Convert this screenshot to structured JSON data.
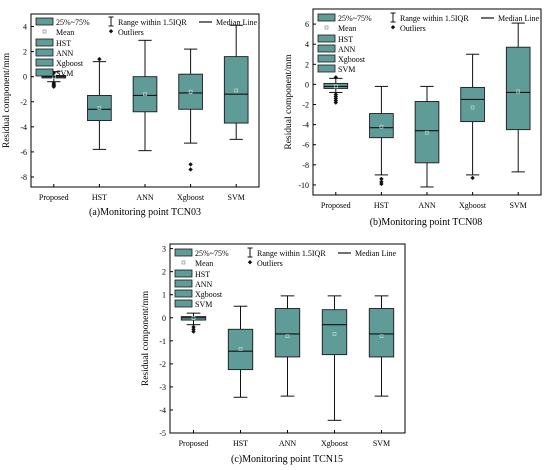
{
  "colors": {
    "box_fill": "#5f9c98",
    "box_edge": "#1a1a1a",
    "line": "#111111",
    "axis": "#000000"
  },
  "legend": {
    "box_label": "25%~75%",
    "range_label": "Range within 1.5IQR",
    "median_label": "Median Line",
    "mean_label": "Mean",
    "outliers_label": "Outliers"
  },
  "chart_data": [
    {
      "type": "box",
      "title": "(a)Monitoring point TCN03",
      "ylabel": "Residual component/mm",
      "xlabel": "",
      "ylim": [
        -8.8,
        5
      ],
      "yticks": [
        -8,
        -6,
        -4,
        -2,
        0,
        2,
        4
      ],
      "categories": [
        "Proposed",
        "HST",
        "ANN",
        "Xgboost",
        "SVM"
      ],
      "legend_series": [
        "HST",
        "ANN",
        "Xgboost",
        "SVM"
      ],
      "boxes": [
        {
          "min": -0.4,
          "q1": -0.1,
          "median": 0.0,
          "q3": 0.1,
          "max": 0.4,
          "mean": 0.0,
          "outliers": [
            -0.5,
            -0.6,
            -0.7,
            -0.8,
            0.3
          ]
        },
        {
          "min": -5.8,
          "q1": -3.5,
          "median": -2.6,
          "q3": -1.5,
          "max": 1.2,
          "mean": -2.5,
          "outliers": [
            1.4
          ]
        },
        {
          "min": -5.9,
          "q1": -2.8,
          "median": -1.5,
          "q3": 0.0,
          "max": 2.9,
          "mean": -1.4,
          "outliers": []
        },
        {
          "min": -5.3,
          "q1": -2.6,
          "median": -1.3,
          "q3": 0.2,
          "max": 2.2,
          "mean": -1.2,
          "outliers": [
            -7.0,
            -7.4
          ]
        },
        {
          "min": -5.0,
          "q1": -3.7,
          "median": -1.4,
          "q3": 1.6,
          "max": 4.1,
          "mean": -1.1,
          "outliers": []
        }
      ]
    },
    {
      "type": "box",
      "title": "(b)Monitoring point TCN08",
      "ylabel": "Residual component/mm",
      "xlabel": "",
      "ylim": [
        -11,
        7.5
      ],
      "yticks": [
        -10,
        -8,
        -6,
        -4,
        -2,
        0,
        2,
        4,
        6
      ],
      "categories": [
        "Proposed",
        "HST",
        "ANN",
        "Xgboost",
        "SVM"
      ],
      "legend_series": [
        "HST",
        "ANN",
        "Xgboost",
        "SVM"
      ],
      "boxes": [
        {
          "min": -0.8,
          "q1": -0.4,
          "median": -0.2,
          "q3": 0.1,
          "max": 0.6,
          "mean": -0.2,
          "outliers": [
            -1.0,
            -1.2,
            -1.4,
            -1.6,
            -1.8,
            0.7
          ]
        },
        {
          "min": -9.0,
          "q1": -5.3,
          "median": -4.3,
          "q3": -2.9,
          "max": -0.2,
          "mean": -4.2,
          "outliers": [
            -9.4,
            -9.7,
            -9.9
          ]
        },
        {
          "min": -10.2,
          "q1": -7.8,
          "median": -4.6,
          "q3": -1.7,
          "max": -0.2,
          "mean": -4.8,
          "outliers": []
        },
        {
          "min": -9.0,
          "q1": -3.7,
          "median": -1.5,
          "q3": -0.3,
          "max": 3.0,
          "mean": -2.3,
          "outliers": [
            -9.3
          ]
        },
        {
          "min": -8.7,
          "q1": -4.5,
          "median": -0.8,
          "q3": 3.7,
          "max": 6.1,
          "mean": -0.7,
          "outliers": []
        }
      ]
    },
    {
      "type": "box",
      "title": "(c)Monitoring point TCN15",
      "ylabel": "Residual component/mm",
      "xlabel": "",
      "ylim": [
        -5,
        3.2
      ],
      "yticks": [
        -5,
        -4,
        -3,
        -2,
        -1,
        0,
        1,
        2,
        3
      ],
      "categories": [
        "Proposed",
        "HST",
        "ANN",
        "Xgboost",
        "SVM"
      ],
      "legend_series": [
        "HST",
        "ANN",
        "Xgboost",
        "SVM"
      ],
      "boxes": [
        {
          "min": -0.3,
          "q1": -0.1,
          "median": 0.0,
          "q3": 0.05,
          "max": 0.2,
          "mean": -0.02,
          "outliers": [
            -0.4,
            -0.5,
            -0.6
          ]
        },
        {
          "min": -3.45,
          "q1": -2.25,
          "median": -1.45,
          "q3": -0.5,
          "max": 0.5,
          "mean": -1.35,
          "outliers": []
        },
        {
          "min": -3.4,
          "q1": -1.7,
          "median": -0.7,
          "q3": 0.4,
          "max": 0.95,
          "mean": -0.8,
          "outliers": []
        },
        {
          "min": -4.45,
          "q1": -1.6,
          "median": -0.3,
          "q3": 0.35,
          "max": 0.95,
          "mean": -0.7,
          "outliers": []
        },
        {
          "min": -3.4,
          "q1": -1.7,
          "median": -0.7,
          "q3": 0.4,
          "max": 0.95,
          "mean": -0.8,
          "outliers": []
        }
      ]
    }
  ]
}
